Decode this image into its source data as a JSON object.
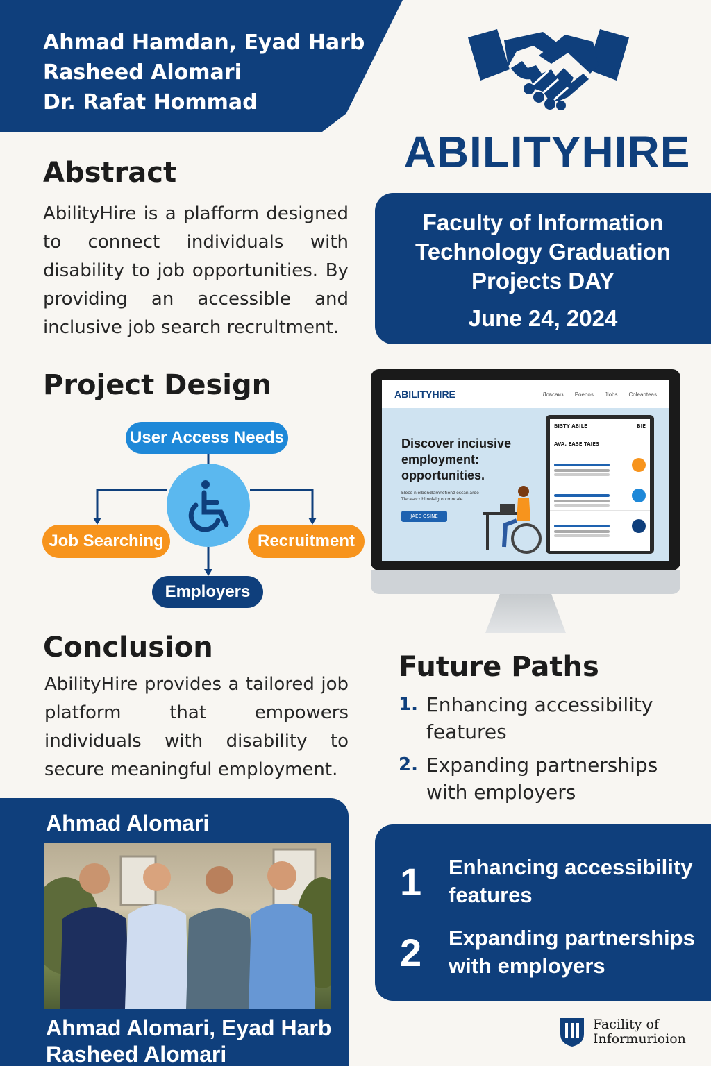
{
  "authors": {
    "line1": "Ahmad Hamdan, Eyad Harb",
    "line2": "Rasheed Alomari",
    "line3": "Dr. Rafat Hommad"
  },
  "brand": {
    "name": "ABILITYHIRE",
    "logo_icon": "handshake-icon",
    "accent_color": "#0f3f7c",
    "highlight_blue": "#1e88d8",
    "highlight_orange": "#f7941d"
  },
  "event": {
    "title_line1": "Faculty of Information",
    "title_line2": "Technology Graduation",
    "title_line3": "Projects DAY",
    "date": "June 24, 2024"
  },
  "abstract": {
    "heading": "Abstract",
    "text": "AbilityHire is a plafform designed to connect individuals with disability to job opportunities. By providing an accessible and inclusive job search recrultment."
  },
  "project_design": {
    "heading": "Project Design",
    "center_icon": "wheelchair-icon",
    "nodes": {
      "top": "User Access Needs",
      "left": "Job Searching",
      "right": "Recruitment",
      "bottom": "Employers"
    }
  },
  "mockup": {
    "brand": "ABILITYHIRE",
    "nav_links": [
      "Ловсаиз",
      "Poenos",
      "Jlobs",
      "Coleanteas"
    ],
    "hero_title": "Discover inciusive employment: opportunities.",
    "hero_sub": "Eloce nlolbondlamnotionz escanlaroe Tierasocriblinolalgtorcrnocale",
    "hero_button": "JAEE OSINE",
    "phone_header": "BISTY ABILE",
    "phone_header_right": "BIE",
    "phone_sub": "AVA. EASE TAIES"
  },
  "conclusion": {
    "heading": "Conclusion",
    "text": "AbilityHire provides a tailored job platform that empowers individuals with disability to secure meaningful employment."
  },
  "future_paths": {
    "heading": "Future Paths",
    "items": [
      {
        "num": "1.",
        "text": "Enhancing accessibility features"
      },
      {
        "num": "2.",
        "text": "Expanding partnerships with employers"
      }
    ]
  },
  "future_box": {
    "items": [
      {
        "num": "1",
        "line1": "Enhancing accessibility",
        "line2": "features"
      },
      {
        "num": "2",
        "line1": "Expanding partnerships",
        "line2": "with employers"
      }
    ]
  },
  "team": {
    "name_top": "Ahmad Alomari",
    "bottom_line1": "Ahmad Alomari, Eyad Harb",
    "bottom_line2": "Rasheed Alomari"
  },
  "faculty_logo": {
    "line1": "Facility of",
    "line2": "Informurioion",
    "icon": "crest-icon"
  }
}
